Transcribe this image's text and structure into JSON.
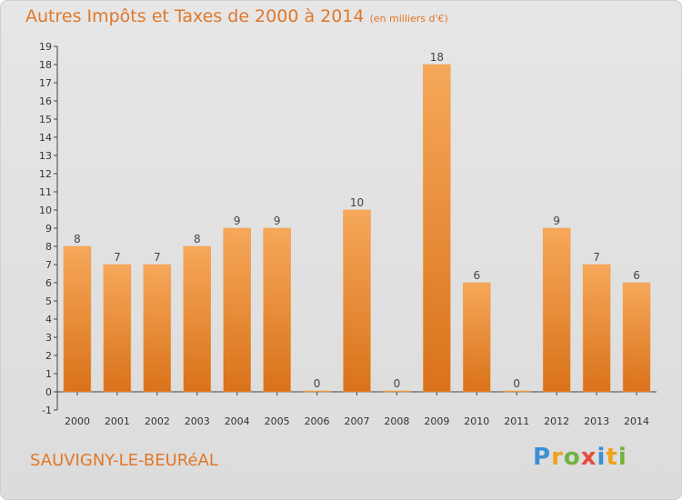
{
  "header": {
    "title": "Autres Impôts et Taxes de 2000 à 2014",
    "unit": "(en milliers d'€)"
  },
  "footer": {
    "commune": "SAUVIGNY-LE-BEURéAL",
    "brand_letters": [
      "P",
      "r",
      "o",
      "x",
      "i",
      "t",
      "i"
    ],
    "brand_colors": [
      "#3a8fd6",
      "#f0a21b",
      "#6db33f",
      "#e74c3c",
      "#3a8fd6",
      "#f0a21b",
      "#6db33f"
    ]
  },
  "chart_data": {
    "type": "bar",
    "categories": [
      "2000",
      "2001",
      "2002",
      "2003",
      "2004",
      "2005",
      "2006",
      "2007",
      "2008",
      "2009",
      "2010",
      "2011",
      "2012",
      "2013",
      "2014"
    ],
    "values": [
      8,
      7,
      7,
      8,
      9,
      9,
      0,
      10,
      0,
      18,
      6,
      0,
      9,
      7,
      6
    ],
    "data_labels": [
      "8",
      "7",
      "7",
      "8",
      "9",
      "9",
      "0",
      "10",
      "0",
      "18",
      "6",
      "0",
      "9",
      "7",
      "6"
    ],
    "y_ticks": [
      "-1",
      "0",
      "1",
      "2",
      "3",
      "4",
      "5",
      "6",
      "7",
      "8",
      "9",
      "10",
      "11",
      "12",
      "13",
      "14",
      "15",
      "16",
      "17",
      "18",
      "19"
    ],
    "ylim": [
      -1,
      19
    ],
    "grid": false,
    "bar_color": "#ef8f33",
    "title": "Autres Impôts et Taxes de 2000 à 2014",
    "xlabel": "",
    "ylabel": ""
  }
}
